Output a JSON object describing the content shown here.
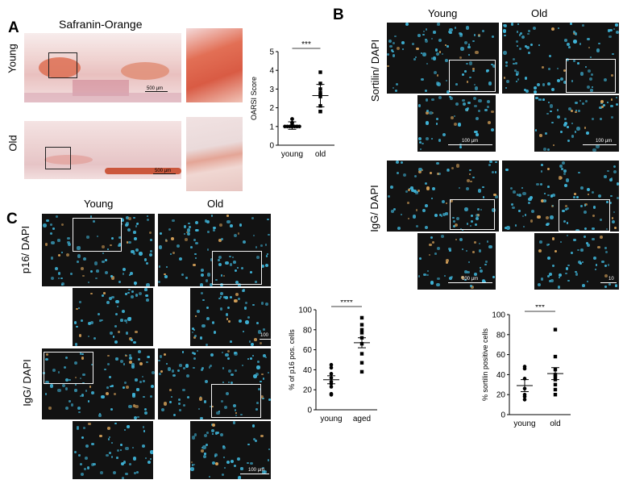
{
  "panels": {
    "A": {
      "letter": "A",
      "title": "Safranin-Orange",
      "row_young": "Young",
      "row_old": "Old",
      "scalebar_young": "500 µm",
      "scalebar_old": "500 µm"
    },
    "B": {
      "letter": "B",
      "col_young": "Young",
      "col_old": "Old",
      "row_sortilin": "Sortilin/ DAPI",
      "row_igg": "IgG/ DAPI",
      "scalebar": "100 µm",
      "scalebar_cut": "10"
    },
    "C": {
      "letter": "C",
      "col_young": "Young",
      "col_old": "Old",
      "row_p16": "p16/ DAPI",
      "row_igg": "IgG/ DAPI",
      "scalebar": "100 µm",
      "scalebar_cut": "100"
    }
  },
  "chart_data": [
    {
      "type": "scatter",
      "id": "oarsi",
      "ylabel": "OARSI Score",
      "categories": [
        "young",
        "old"
      ],
      "ylim": [
        0,
        5
      ],
      "yticks": [
        0,
        1,
        2,
        3,
        4,
        5
      ],
      "significance": "***",
      "series": [
        {
          "category": "young",
          "values": [
            1.0,
            1.0,
            1.0,
            1.0,
            1.0,
            1.0,
            1.0,
            1.0,
            1.0,
            1.0,
            1.1,
            1.2,
            1.2,
            1.4,
            1.4
          ],
          "mean": 1.05,
          "error_low": 0.85,
          "error_high": 1.25,
          "marker": "circle"
        },
        {
          "category": "old",
          "values": [
            1.8,
            1.8,
            2.1,
            2.6,
            2.7,
            2.8,
            3.0,
            3.3,
            3.9
          ],
          "mean": 2.65,
          "error_low": 2.05,
          "error_high": 3.25,
          "marker": "square"
        }
      ]
    },
    {
      "type": "scatter",
      "id": "p16",
      "ylabel": "% of p16 pos. cells",
      "categories": [
        "young",
        "aged"
      ],
      "ylim": [
        0,
        100
      ],
      "yticks": [
        0,
        20,
        40,
        60,
        80,
        100
      ],
      "significance": "****",
      "series": [
        {
          "category": "young",
          "values": [
            15,
            16,
            23,
            26,
            28,
            32,
            36,
            42,
            45
          ],
          "mean": 30,
          "error_low": 26,
          "error_high": 34,
          "marker": "circle"
        },
        {
          "category": "aged",
          "values": [
            38,
            47,
            56,
            66,
            72,
            77,
            80,
            85,
            92
          ],
          "mean": 67,
          "error_low": 62,
          "error_high": 72,
          "marker": "square"
        }
      ]
    },
    {
      "type": "scatter",
      "id": "sortilin",
      "ylabel": "% sortilin positive cells",
      "categories": [
        "young",
        "old"
      ],
      "ylim": [
        0,
        100
      ],
      "yticks": [
        0,
        20,
        40,
        60,
        80,
        100
      ],
      "significance": "***",
      "series": [
        {
          "category": "young",
          "values": [
            15,
            18,
            20,
            26,
            36,
            46,
            48
          ],
          "mean": 29,
          "error_low": 23,
          "error_high": 35,
          "marker": "circle"
        },
        {
          "category": "old",
          "values": [
            20,
            25,
            30,
            35,
            38,
            40,
            45,
            58,
            85
          ],
          "mean": 41,
          "error_low": 35,
          "error_high": 47,
          "marker": "square"
        }
      ]
    }
  ]
}
